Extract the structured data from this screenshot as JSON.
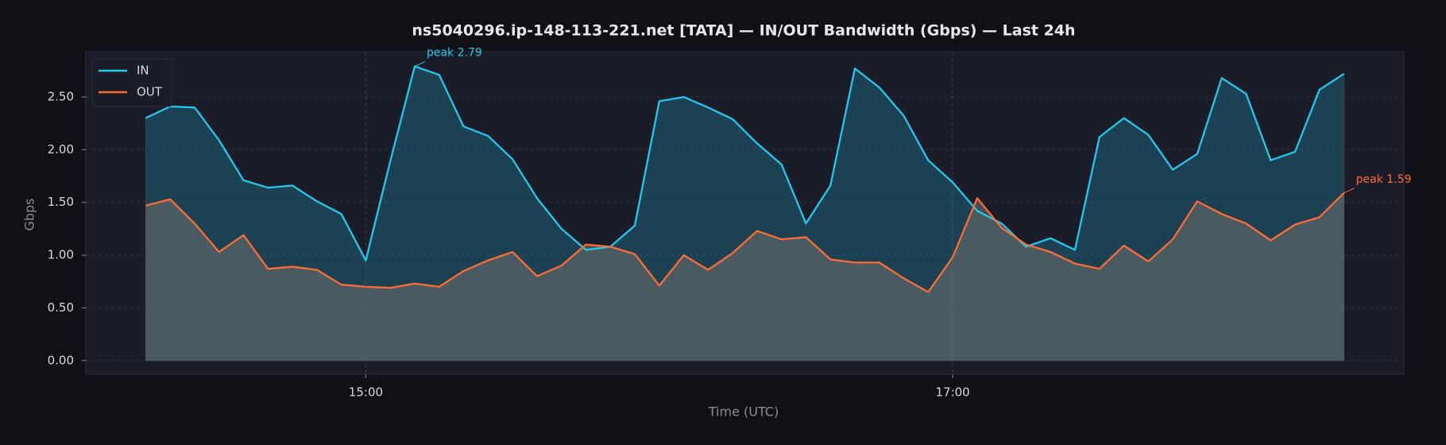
{
  "chart_data": {
    "type": "line",
    "title": "ns5040296.ip-148-113-221.net [TATA] — IN/OUT Bandwidth (Gbps) — Last 24h",
    "xlabel": "Time (UTC)",
    "ylabel": "Gbps",
    "x": [
      "14:15",
      "14:20",
      "14:25",
      "14:30",
      "14:35",
      "14:40",
      "14:45",
      "14:50",
      "14:55",
      "15:00",
      "15:05",
      "15:10",
      "15:15",
      "15:20",
      "15:25",
      "15:30",
      "15:35",
      "15:40",
      "15:45",
      "15:50",
      "15:55",
      "16:00",
      "16:05",
      "16:10",
      "16:15",
      "16:20",
      "16:25",
      "16:30",
      "16:35",
      "16:40",
      "16:45",
      "16:50",
      "16:55",
      "17:00",
      "17:05",
      "17:10",
      "17:15",
      "17:20",
      "17:25",
      "17:30",
      "17:35",
      "17:40",
      "17:45",
      "17:50",
      "17:55",
      "18:00",
      "18:05",
      "18:10",
      "18:15",
      "18:20"
    ],
    "series": [
      {
        "name": "IN",
        "color": "#22c8ee",
        "annotation": "peak 2.79",
        "values": [
          2.3,
          2.41,
          2.4,
          2.09,
          1.71,
          1.64,
          1.66,
          1.51,
          1.39,
          0.95,
          1.89,
          2.79,
          2.71,
          2.22,
          2.13,
          1.91,
          1.54,
          1.25,
          1.05,
          1.08,
          1.28,
          2.46,
          2.5,
          2.4,
          2.29,
          2.06,
          1.86,
          1.3,
          1.66,
          2.77,
          2.59,
          2.32,
          1.9,
          1.69,
          1.42,
          1.3,
          1.08,
          1.16,
          1.05,
          2.12,
          2.3,
          2.14,
          1.81,
          1.96,
          2.68,
          2.53,
          1.9,
          1.98,
          2.57,
          2.72
        ]
      },
      {
        "name": "OUT",
        "color": "#ff6b35",
        "annotation": "peak 1.59",
        "values": [
          1.47,
          1.53,
          1.3,
          1.03,
          1.19,
          0.87,
          0.89,
          0.86,
          0.72,
          0.7,
          0.69,
          0.73,
          0.7,
          0.85,
          0.95,
          1.03,
          0.8,
          0.9,
          1.1,
          1.08,
          1.01,
          0.71,
          1.0,
          0.86,
          1.02,
          1.23,
          1.15,
          1.17,
          0.96,
          0.93,
          0.93,
          0.78,
          0.65,
          0.98,
          1.54,
          1.26,
          1.1,
          1.03,
          0.92,
          0.87,
          1.09,
          0.94,
          1.15,
          1.51,
          1.39,
          1.3,
          1.14,
          1.29,
          1.36,
          1.59
        ]
      }
    ],
    "ylim": [
      -0.13,
      2.93
    ],
    "yticks": [
      {
        "value": 0,
        "label": "0.00"
      },
      {
        "value": 0.5,
        "label": "0.50"
      },
      {
        "value": 1,
        "label": "1.00"
      },
      {
        "value": 1.5,
        "label": "1.50"
      },
      {
        "value": 2,
        "label": "2.00"
      },
      {
        "value": 2.5,
        "label": "2.50"
      }
    ],
    "xticks": [
      "15:00",
      "17:00"
    ],
    "grid": true,
    "legend": "upper left"
  }
}
